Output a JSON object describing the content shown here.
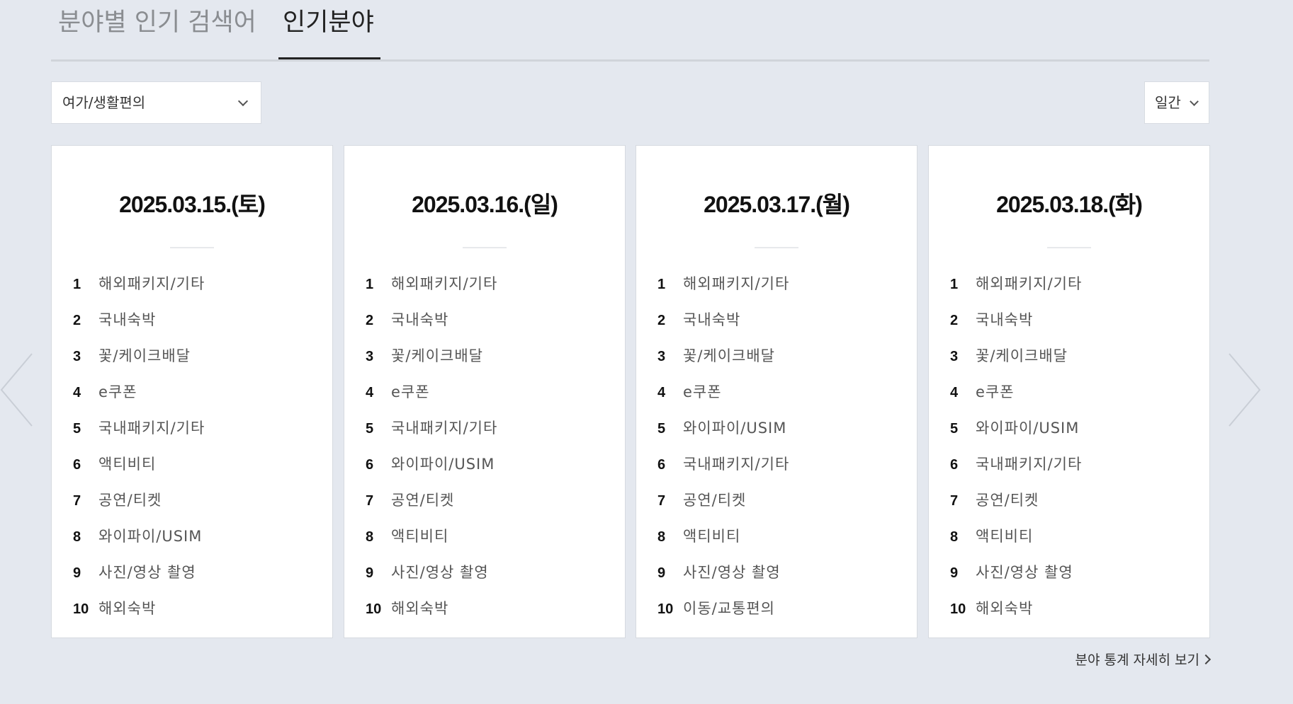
{
  "tabs": [
    {
      "label": "분야별 인기 검색어",
      "active": false
    },
    {
      "label": "인기분야",
      "active": true
    }
  ],
  "category_select": {
    "value": "여가/생활편의"
  },
  "period_select": {
    "value": "일간"
  },
  "cards": [
    {
      "date": "2025.03.15.(토)",
      "ranks": [
        {
          "num": "1",
          "name": "해외패키지/기타"
        },
        {
          "num": "2",
          "name": "국내숙박"
        },
        {
          "num": "3",
          "name": "꽃/케이크배달"
        },
        {
          "num": "4",
          "name": "e쿠폰"
        },
        {
          "num": "5",
          "name": "국내패키지/기타"
        },
        {
          "num": "6",
          "name": "액티비티"
        },
        {
          "num": "7",
          "name": "공연/티켓"
        },
        {
          "num": "8",
          "name": "와이파이/USIM"
        },
        {
          "num": "9",
          "name": "사진/영상 촬영"
        },
        {
          "num": "10",
          "name": "해외숙박"
        }
      ]
    },
    {
      "date": "2025.03.16.(일)",
      "ranks": [
        {
          "num": "1",
          "name": "해외패키지/기타"
        },
        {
          "num": "2",
          "name": "국내숙박"
        },
        {
          "num": "3",
          "name": "꽃/케이크배달"
        },
        {
          "num": "4",
          "name": "e쿠폰"
        },
        {
          "num": "5",
          "name": "국내패키지/기타"
        },
        {
          "num": "6",
          "name": "와이파이/USIM"
        },
        {
          "num": "7",
          "name": "공연/티켓"
        },
        {
          "num": "8",
          "name": "액티비티"
        },
        {
          "num": "9",
          "name": "사진/영상 촬영"
        },
        {
          "num": "10",
          "name": "해외숙박"
        }
      ]
    },
    {
      "date": "2025.03.17.(월)",
      "ranks": [
        {
          "num": "1",
          "name": "해외패키지/기타"
        },
        {
          "num": "2",
          "name": "국내숙박"
        },
        {
          "num": "3",
          "name": "꽃/케이크배달"
        },
        {
          "num": "4",
          "name": "e쿠폰"
        },
        {
          "num": "5",
          "name": "와이파이/USIM"
        },
        {
          "num": "6",
          "name": "국내패키지/기타"
        },
        {
          "num": "7",
          "name": "공연/티켓"
        },
        {
          "num": "8",
          "name": "액티비티"
        },
        {
          "num": "9",
          "name": "사진/영상 촬영"
        },
        {
          "num": "10",
          "name": "이동/교통편의"
        }
      ]
    },
    {
      "date": "2025.03.18.(화)",
      "ranks": [
        {
          "num": "1",
          "name": "해외패키지/기타"
        },
        {
          "num": "2",
          "name": "국내숙박"
        },
        {
          "num": "3",
          "name": "꽃/케이크배달"
        },
        {
          "num": "4",
          "name": "e쿠폰"
        },
        {
          "num": "5",
          "name": "와이파이/USIM"
        },
        {
          "num": "6",
          "name": "국내패키지/기타"
        },
        {
          "num": "7",
          "name": "공연/티켓"
        },
        {
          "num": "8",
          "name": "액티비티"
        },
        {
          "num": "9",
          "name": "사진/영상 촬영"
        },
        {
          "num": "10",
          "name": "해외숙박"
        }
      ]
    }
  ],
  "more_link": {
    "label": "분야 통계 자세히 보기"
  },
  "icons": {
    "prev": "chevron-left-icon",
    "next": "chevron-right-icon",
    "dropdown": "chevron-down-icon"
  },
  "colors": {
    "background": "#e4e8ef",
    "card": "#ffffff",
    "active_tab": "#222222",
    "inactive_tab": "#8a8d91",
    "arrow": "#c9ced6"
  }
}
